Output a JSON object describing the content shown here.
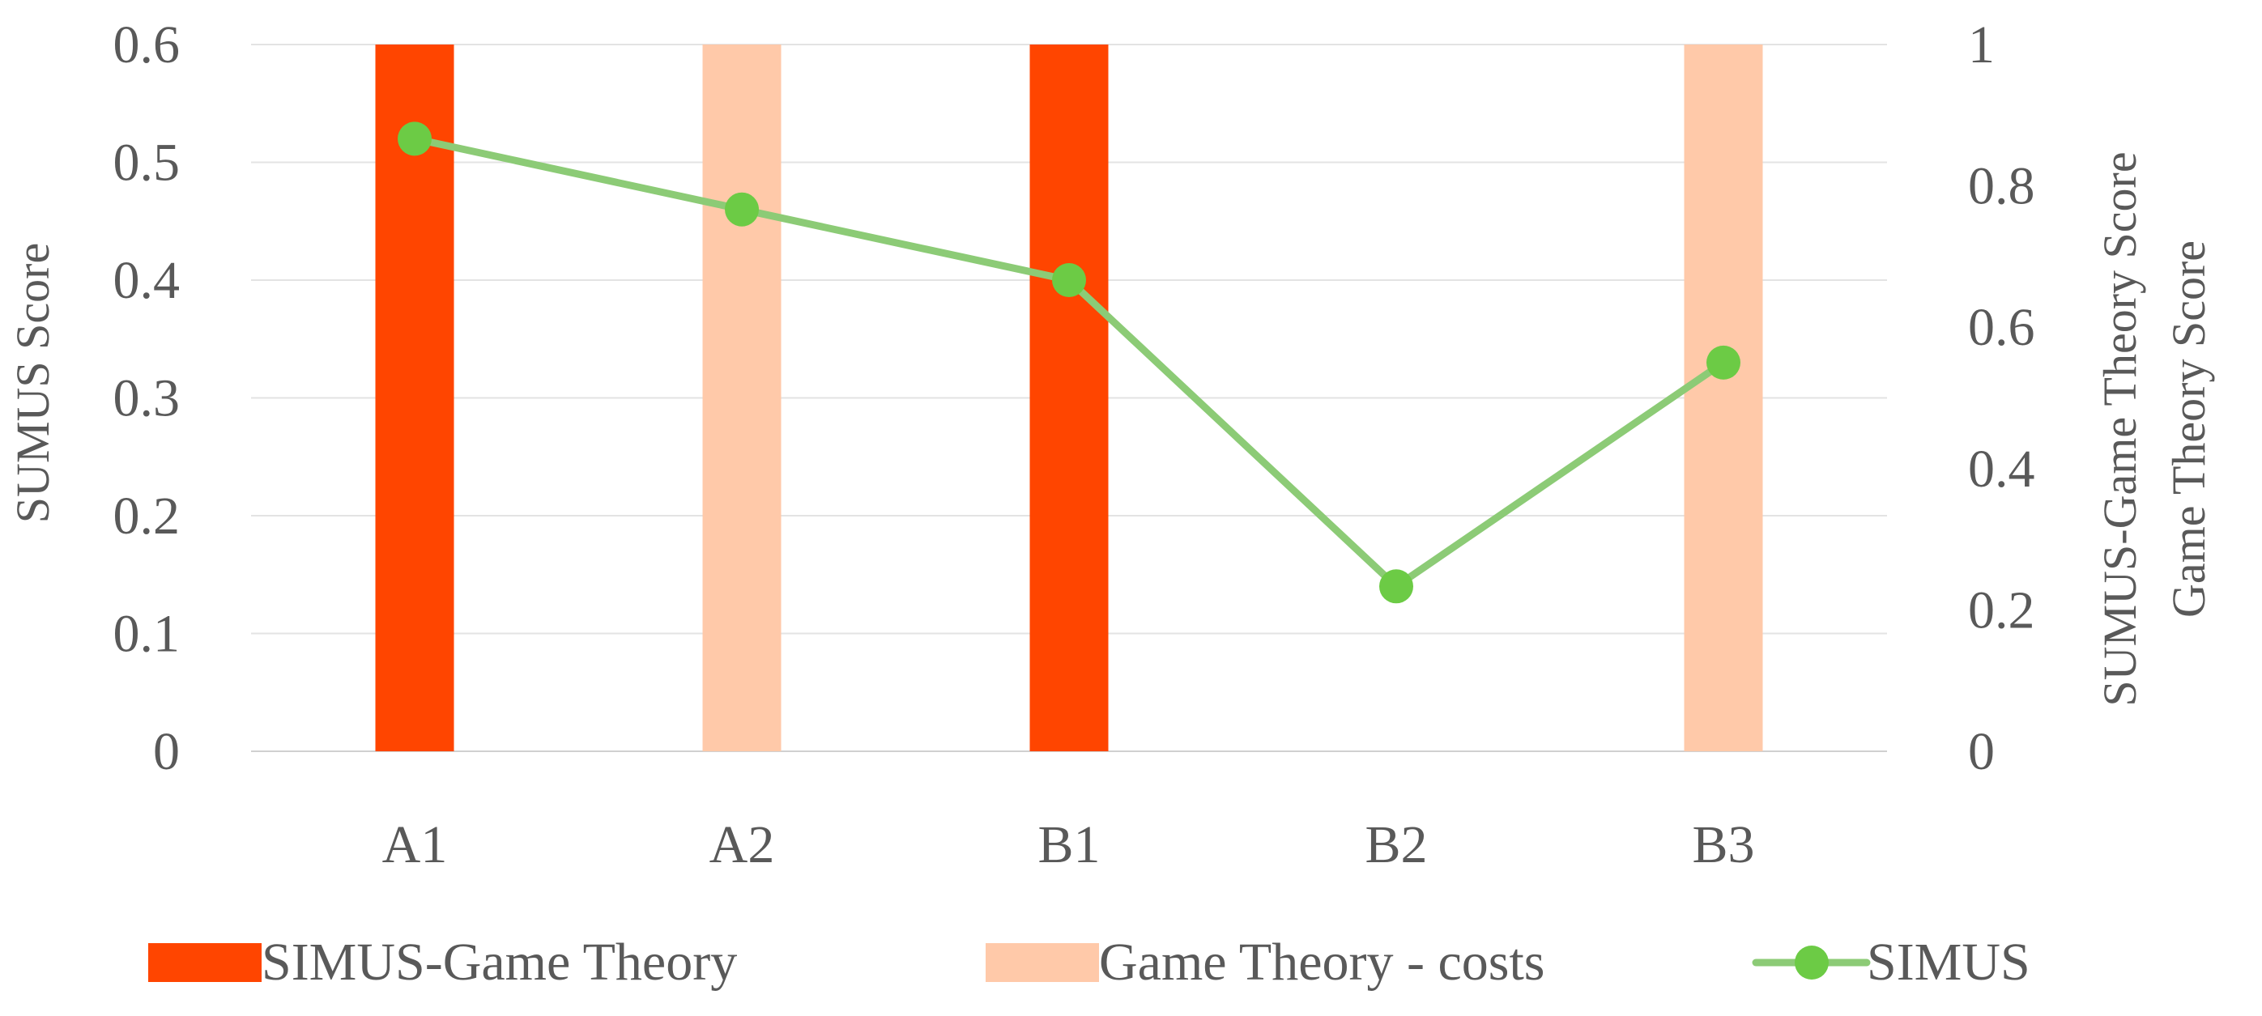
{
  "chart_data": {
    "type": "bar",
    "categories": [
      "A1",
      "A2",
      "B1",
      "B2",
      "B3"
    ],
    "series": [
      {
        "name": "SIMUS-Game Theory",
        "type": "bar",
        "axis": "right",
        "color": "#FF4500",
        "values": [
          1,
          0,
          1,
          0,
          0
        ]
      },
      {
        "name": "Game Theory - costs",
        "type": "bar",
        "axis": "right",
        "color": "#FFC9A9",
        "values": [
          0,
          1,
          0,
          0,
          1
        ]
      },
      {
        "name": "SIMUS",
        "type": "line",
        "axis": "left",
        "color": "#8CCB76",
        "marker_color": "#6CCB45",
        "values": [
          0.52,
          0.46,
          0.4,
          0.14,
          0.33
        ]
      }
    ],
    "ylabel": "SUMUS Score",
    "y2label": [
      "SUMUS-Game Theory Score",
      "Game Theory Score"
    ],
    "ylim": [
      0,
      0.6
    ],
    "y_ticks": [
      "0",
      "0.1",
      "0.2",
      "0.3",
      "0.4",
      "0.5",
      "0.6"
    ],
    "y2lim": [
      0,
      1
    ],
    "y2_ticks": [
      "0",
      "0.2",
      "0.4",
      "0.6",
      "0.8",
      "1"
    ],
    "grid": true,
    "legend_position": "bottom"
  }
}
